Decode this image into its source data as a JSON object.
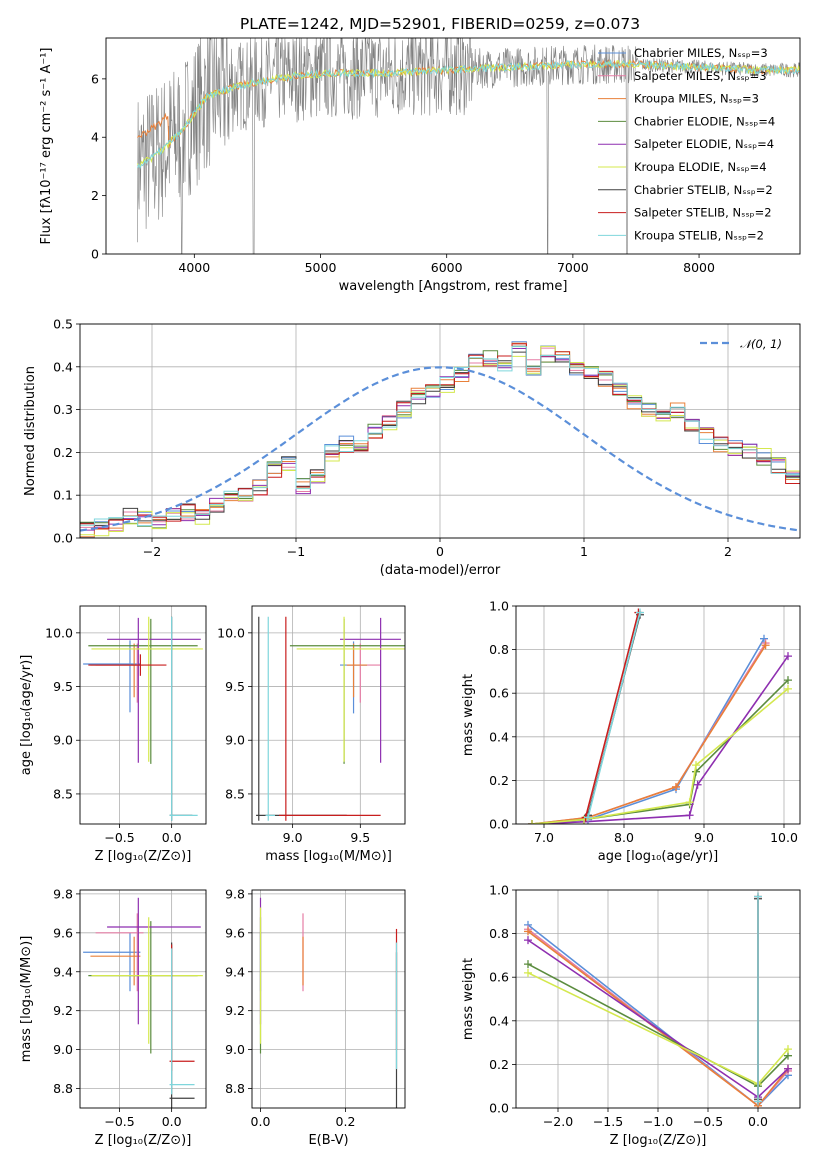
{
  "colors": {
    "chabrier_miles": "#5b8fd9",
    "salpeter_miles": "#e57da5",
    "kroupa_miles": "#e8803a",
    "chabrier_elodie": "#5b8c3e",
    "salpeter_elodie": "#8e2fb0",
    "kroupa_elodie": "#d4e84e",
    "chabrier_stelib": "#404040",
    "salpeter_stelib": "#c81e1e",
    "kroupa_stelib": "#7fd6dc",
    "data": "#808080",
    "normal": "#5b8fd9"
  },
  "chart_data": [
    {
      "id": "spectrum",
      "type": "line",
      "title": "PLATE=1242, MJD=52901, FIBERID=0259, z=0.073",
      "xlabel": "wavelength [Angstrom, rest frame]",
      "ylabel": "Flux [fλ10⁻¹⁷ erg cm⁻² s⁻¹ A⁻¹]",
      "xlim": [
        3300,
        8800
      ],
      "ylim": [
        0,
        7.4
      ],
      "xticks": [
        4000,
        5000,
        6000,
        7000,
        8000
      ],
      "yticks": [
        0,
        2,
        4,
        6
      ],
      "legend": [
        "Chabrier MILES, N_SSP=3",
        "Salpeter MILES, N_SSP=3",
        "Kroupa MILES, N_SSP=3",
        "Chabrier ELODIE, N_SSP=4",
        "Salpeter ELODIE, N_SSP=4",
        "Kroupa ELODIE, N_SSP=4",
        "Chabrier STELIB, N_SSP=2",
        "Salpeter STELIB, N_SSP=2",
        "Kroupa STELIB, N_SSP=2"
      ],
      "legend_placement": "right",
      "continuum": {
        "x": [
          3550,
          3700,
          3900,
          4100,
          4300,
          4500,
          4800,
          5100,
          5500,
          6000,
          6500,
          7000,
          7500,
          8000,
          8500
        ],
        "y": [
          3.0,
          3.4,
          4.2,
          5.4,
          5.7,
          5.9,
          6.1,
          6.2,
          6.2,
          6.3,
          6.4,
          6.5,
          6.5,
          6.4,
          6.3
        ]
      }
    },
    {
      "id": "residuals",
      "type": "histogram",
      "xlabel": "(data-model)/error",
      "ylabel": "Normed distribution",
      "xlim": [
        -2.5,
        2.5
      ],
      "ylim": [
        0,
        0.5
      ],
      "xticks": [
        -2,
        -1,
        0,
        1,
        2
      ],
      "yticks": [
        0.0,
        0.1,
        0.2,
        0.3,
        0.4,
        0.5
      ],
      "legend": [
        "𝒩(0, 1)"
      ],
      "legend_placement": "upper right",
      "bins_x0": -2.5,
      "bin_width": 0.1,
      "values": [
        0.02,
        0.025,
        0.03,
        0.05,
        0.045,
        0.04,
        0.05,
        0.06,
        0.05,
        0.08,
        0.09,
        0.1,
        0.12,
        0.16,
        0.17,
        0.12,
        0.14,
        0.2,
        0.22,
        0.21,
        0.25,
        0.27,
        0.3,
        0.33,
        0.34,
        0.36,
        0.38,
        0.42,
        0.42,
        0.41,
        0.44,
        0.4,
        0.43,
        0.42,
        0.4,
        0.39,
        0.37,
        0.35,
        0.32,
        0.3,
        0.29,
        0.3,
        0.27,
        0.24,
        0.22,
        0.21,
        0.2,
        0.19,
        0.17,
        0.14,
        0.14,
        0.1,
        0.11,
        0.1,
        0.09,
        0.08,
        0.07,
        0.07,
        0.05,
        0.05,
        0.04,
        0.04,
        0.05,
        0.03,
        0.03
      ]
    },
    {
      "id": "age_vs_z",
      "type": "errorbar",
      "xlabel": "Z [log₁₀(Z/Z⊙)]",
      "ylabel": "age  [log₁₀(age/yr)]",
      "xlim": [
        -0.88,
        0.33
      ],
      "ylim": [
        8.22,
        10.25
      ],
      "xticks": [
        -0.5,
        0.0
      ],
      "yticks": [
        8.5,
        9.0,
        9.5,
        10.0
      ],
      "points": [
        {
          "x": -0.4,
          "y": 9.71,
          "xerr": [
            0.45,
            0.1
          ],
          "yerr": [
            0.45,
            0.22
          ],
          "c": "chabrier_miles"
        },
        {
          "x": -0.33,
          "y": 9.7,
          "xerr": [
            0.4,
            0.06
          ],
          "yerr": [
            0.35,
            0.2
          ],
          "c": "salpeter_miles"
        },
        {
          "x": -0.36,
          "y": 9.7,
          "xerr": [
            0.42,
            0.06
          ],
          "yerr": [
            0.3,
            0.2
          ],
          "c": "kroupa_miles"
        },
        {
          "x": -0.2,
          "y": 9.88,
          "xerr": [
            0.6,
            0.45
          ],
          "yerr": [
            1.1,
            0.25
          ],
          "c": "chabrier_elodie"
        },
        {
          "x": -0.32,
          "y": 9.94,
          "xerr": [
            0.3,
            0.6
          ],
          "yerr": [
            1.15,
            0.2
          ],
          "c": "salpeter_elodie"
        },
        {
          "x": -0.22,
          "y": 9.85,
          "xerr": [
            0.55,
            0.52
          ],
          "yerr": [
            1.05,
            0.3
          ],
          "c": "kroupa_elodie"
        },
        {
          "x": 0.0,
          "y": 8.3,
          "xerr": [
            0.02,
            0.2
          ],
          "yerr": [
            0.05,
            1.85
          ],
          "c": "chabrier_stelib"
        },
        {
          "x": -0.3,
          "y": 9.7,
          "xerr": [
            0.5,
            0.25
          ],
          "yerr": [
            0.1,
            0.1
          ],
          "c": "salpeter_stelib"
        },
        {
          "x": 0.0,
          "y": 8.3,
          "xerr": [
            0.02,
            0.25
          ],
          "yerr": [
            0.05,
            1.85
          ],
          "c": "kroupa_stelib"
        }
      ]
    },
    {
      "id": "age_vs_mass",
      "type": "errorbar",
      "xlabel": "mass [log₁₀(M/M⊙)]",
      "ylabel": "",
      "xlim": [
        8.7,
        9.83
      ],
      "ylim": [
        8.22,
        10.25
      ],
      "xticks": [
        9.0,
        9.5
      ],
      "yticks": [
        8.5,
        9.0,
        9.5,
        10.0
      ],
      "points": [
        {
          "x": 9.45,
          "y": 9.7,
          "xerr": [
            0.1,
            0.1
          ],
          "yerr": [
            0.45,
            0.22
          ],
          "c": "chabrier_miles"
        },
        {
          "x": 9.5,
          "y": 9.7,
          "xerr": [
            0.1,
            0.15
          ],
          "yerr": [
            0.35,
            0.2
          ],
          "c": "salpeter_miles"
        },
        {
          "x": 9.45,
          "y": 9.7,
          "xerr": [
            0.05,
            0.1
          ],
          "yerr": [
            0.3,
            0.2
          ],
          "c": "kroupa_miles"
        },
        {
          "x": 9.38,
          "y": 9.88,
          "xerr": [
            0.4,
            0.5
          ],
          "yerr": [
            1.1,
            0.25
          ],
          "c": "chabrier_elodie"
        },
        {
          "x": 9.65,
          "y": 9.94,
          "xerr": [
            0.3,
            0.15
          ],
          "yerr": [
            1.15,
            0.2
          ],
          "c": "salpeter_elodie"
        },
        {
          "x": 9.38,
          "y": 9.85,
          "xerr": [
            0.35,
            0.45
          ],
          "yerr": [
            1.05,
            0.3
          ],
          "c": "kroupa_elodie"
        },
        {
          "x": 8.75,
          "y": 8.3,
          "xerr": [
            0.02,
            0.65
          ],
          "yerr": [
            0.05,
            1.85
          ],
          "c": "chabrier_stelib"
        },
        {
          "x": 8.95,
          "y": 8.3,
          "xerr": [
            0.05,
            0.7
          ],
          "yerr": [
            0.05,
            1.85
          ],
          "c": "salpeter_stelib"
        },
        {
          "x": 8.82,
          "y": 8.3,
          "xerr": [
            0.02,
            0.05
          ],
          "yerr": [
            0.05,
            1.85
          ],
          "c": "kroupa_stelib"
        }
      ]
    },
    {
      "id": "weight_vs_age",
      "type": "line",
      "xlabel": "age  [log₁₀(age/yr)]",
      "ylabel": "mass weight",
      "xlim": [
        6.65,
        10.2
      ],
      "ylim": [
        0,
        1
      ],
      "xticks": [
        7,
        8,
        9,
        10
      ],
      "yticks": [
        0.0,
        0.2,
        0.4,
        0.6,
        0.8,
        1.0
      ],
      "series": [
        {
          "c": "chabrier_miles",
          "x": [
            6.85,
            7.55,
            8.65,
            9.75
          ],
          "y": [
            0.0,
            0.02,
            0.16,
            0.85
          ]
        },
        {
          "c": "salpeter_miles",
          "x": [
            6.85,
            7.55,
            8.65,
            9.77
          ],
          "y": [
            0.0,
            0.03,
            0.17,
            0.83
          ]
        },
        {
          "c": "kroupa_miles",
          "x": [
            6.85,
            7.55,
            8.65,
            9.77
          ],
          "y": [
            0.0,
            0.03,
            0.17,
            0.82
          ]
        },
        {
          "c": "chabrier_elodie",
          "x": [
            6.85,
            7.5,
            8.82,
            8.9,
            10.05
          ],
          "y": [
            0.0,
            0.02,
            0.09,
            0.24,
            0.66
          ]
        },
        {
          "c": "salpeter_elodie",
          "x": [
            6.85,
            7.5,
            8.82,
            8.92,
            10.05
          ],
          "y": [
            0.0,
            0.01,
            0.04,
            0.18,
            0.77
          ]
        },
        {
          "c": "kroupa_elodie",
          "x": [
            6.85,
            7.5,
            8.82,
            8.9,
            10.05
          ],
          "y": [
            0.0,
            0.02,
            0.1,
            0.27,
            0.62
          ]
        },
        {
          "c": "chabrier_stelib",
          "x": [
            7.55,
            8.2
          ],
          "y": [
            0.04,
            0.96
          ]
        },
        {
          "c": "salpeter_stelib",
          "x": [
            7.52,
            8.18
          ],
          "y": [
            0.03,
            0.97
          ]
        },
        {
          "c": "kroupa_stelib",
          "x": [
            7.55,
            8.2
          ],
          "y": [
            0.03,
            0.97
          ]
        }
      ]
    },
    {
      "id": "mass_vs_z",
      "type": "errorbar",
      "xlabel": "Z [log₁₀(Z/Z⊙)]",
      "ylabel": "mass [log₁₀(M/M⊙)]",
      "xlim": [
        -0.88,
        0.33
      ],
      "ylim": [
        8.7,
        9.82
      ],
      "xticks": [
        -0.5,
        0.0
      ],
      "yticks": [
        8.8,
        9.0,
        9.2,
        9.4,
        9.6,
        9.8
      ],
      "points": [
        {
          "x": -0.4,
          "y": 9.5,
          "xerr": [
            0.45,
            0.1
          ],
          "yerr": [
            0.2,
            0.1
          ],
          "c": "chabrier_miles"
        },
        {
          "x": -0.33,
          "y": 9.6,
          "xerr": [
            0.4,
            0.06
          ],
          "yerr": [
            0.3,
            0.1
          ],
          "c": "salpeter_miles"
        },
        {
          "x": -0.36,
          "y": 9.48,
          "xerr": [
            0.42,
            0.06
          ],
          "yerr": [
            0.15,
            0.1
          ],
          "c": "kroupa_miles"
        },
        {
          "x": -0.2,
          "y": 9.38,
          "xerr": [
            0.6,
            0.45
          ],
          "yerr": [
            0.4,
            0.28
          ],
          "c": "chabrier_elodie"
        },
        {
          "x": -0.32,
          "y": 9.63,
          "xerr": [
            0.3,
            0.6
          ],
          "yerr": [
            0.5,
            0.15
          ],
          "c": "salpeter_elodie"
        },
        {
          "x": -0.22,
          "y": 9.38,
          "xerr": [
            0.55,
            0.52
          ],
          "yerr": [
            0.35,
            0.3
          ],
          "c": "kroupa_elodie"
        },
        {
          "x": 0.0,
          "y": 8.75,
          "xerr": [
            0.02,
            0.22
          ],
          "yerr": [
            0.05,
            0.8
          ],
          "c": "chabrier_stelib"
        },
        {
          "x": 0.0,
          "y": 8.94,
          "xerr": [
            0.02,
            0.22
          ],
          "yerr": [
            0.05,
            0.6
          ],
          "c": "salpeter_stelib"
        },
        {
          "x": 0.0,
          "y": 8.82,
          "xerr": [
            0.02,
            0.22
          ],
          "yerr": [
            0.05,
            0.7
          ],
          "c": "kroupa_stelib"
        }
      ]
    },
    {
      "id": "mass_vs_ebv",
      "type": "errorbar",
      "xlabel": "E(B-V)",
      "ylabel": "",
      "xlim": [
        -0.02,
        0.34
      ],
      "ylim": [
        8.7,
        9.82
      ],
      "xticks": [
        0.0,
        0.2
      ],
      "yticks": [
        8.8,
        9.0,
        9.2,
        9.4,
        9.6,
        9.8
      ],
      "points": [
        {
          "x": 0.0,
          "y": 9.5,
          "yerr": [
            0.2,
            0.1
          ],
          "c": "chabrier_miles"
        },
        {
          "x": 0.1,
          "y": 9.6,
          "yerr": [
            0.3,
            0.1
          ],
          "c": "salpeter_miles"
        },
        {
          "x": 0.1,
          "y": 9.48,
          "yerr": [
            0.15,
            0.1
          ],
          "c": "kroupa_miles"
        },
        {
          "x": 0.0,
          "y": 9.38,
          "yerr": [
            0.4,
            0.3
          ],
          "c": "chabrier_elodie"
        },
        {
          "x": 0.0,
          "y": 9.63,
          "yerr": [
            0.5,
            0.15
          ],
          "c": "salpeter_elodie"
        },
        {
          "x": 0.0,
          "y": 9.38,
          "yerr": [
            0.35,
            0.35
          ],
          "c": "kroupa_elodie"
        },
        {
          "x": 0.32,
          "y": 8.75,
          "yerr": [
            0.05,
            0.75
          ],
          "c": "chabrier_stelib"
        },
        {
          "x": 0.32,
          "y": 9.3,
          "yerr": [
            0.3,
            0.32
          ],
          "c": "salpeter_stelib"
        },
        {
          "x": 0.32,
          "y": 9.0,
          "yerr": [
            0.1,
            0.55
          ],
          "c": "kroupa_stelib"
        }
      ]
    },
    {
      "id": "weight_vs_z",
      "type": "line",
      "xlabel": "Z [log₁₀(Z/Z⊙)]",
      "ylabel": "mass weight",
      "xlim": [
        -2.42,
        0.42
      ],
      "ylim": [
        0,
        1
      ],
      "xticks": [
        -2.0,
        -1.5,
        -1.0,
        -0.5,
        0.0
      ],
      "yticks": [
        0.0,
        0.2,
        0.4,
        0.6,
        0.8,
        1.0
      ],
      "series": [
        {
          "c": "chabrier_miles",
          "x": [
            -2.3,
            0.0,
            0.3
          ],
          "y": [
            0.84,
            0.01,
            0.15
          ]
        },
        {
          "c": "salpeter_miles",
          "x": [
            -2.3,
            0.0,
            0.3
          ],
          "y": [
            0.82,
            0.01,
            0.17
          ]
        },
        {
          "c": "kroupa_miles",
          "x": [
            -2.3,
            0.0,
            0.3
          ],
          "y": [
            0.81,
            0.01,
            0.18
          ]
        },
        {
          "c": "chabrier_elodie",
          "x": [
            -2.3,
            0.0,
            0.3
          ],
          "y": [
            0.66,
            0.1,
            0.24
          ]
        },
        {
          "c": "salpeter_elodie",
          "x": [
            -2.3,
            0.0,
            0.3
          ],
          "y": [
            0.77,
            0.05,
            0.18
          ]
        },
        {
          "c": "kroupa_elodie",
          "x": [
            -2.3,
            0.0,
            0.3
          ],
          "y": [
            0.62,
            0.11,
            0.27
          ]
        },
        {
          "c": "chabrier_stelib",
          "x": [
            0.0,
            0.0
          ],
          "y": [
            0.04,
            0.96
          ]
        },
        {
          "c": "salpeter_stelib",
          "x": [
            0.0,
            0.0
          ],
          "y": [
            0.03,
            0.97
          ]
        },
        {
          "c": "kroupa_stelib",
          "x": [
            0.0,
            0.0
          ],
          "y": [
            0.03,
            0.97
          ]
        }
      ]
    }
  ]
}
